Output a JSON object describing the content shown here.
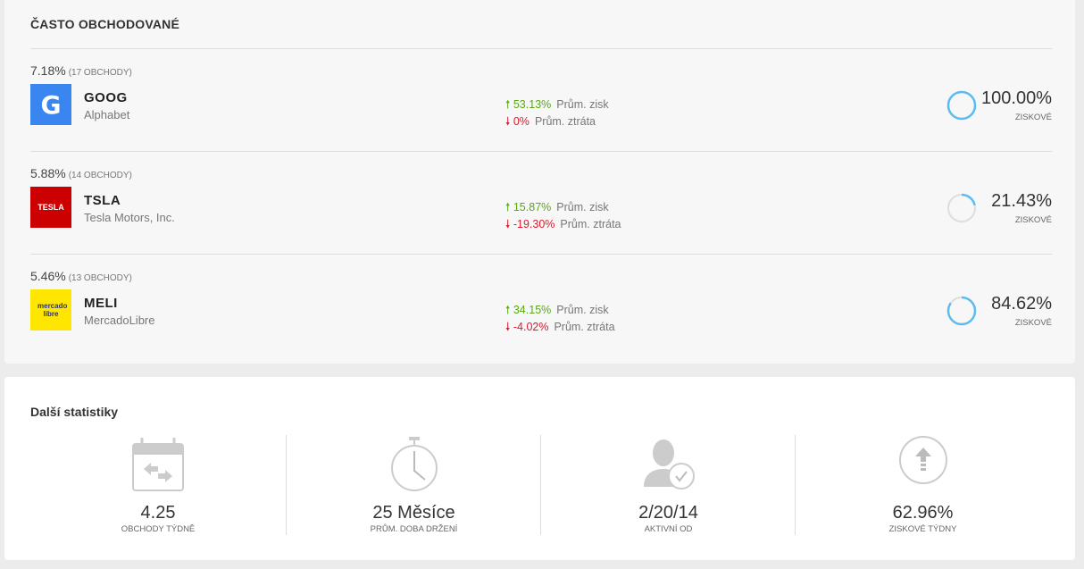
{
  "frequently_traded": {
    "title": "ČASTO OBCHODOVANÉ",
    "items": [
      {
        "percent": "7.18%",
        "trades": "(17 OBCHODY)",
        "symbol": "GOOG",
        "name": "Alphabet",
        "logo_text": "G",
        "logo_color": "#3a86f0",
        "avg_gain": "53.13%",
        "avg_gain_label": "Prům. zisk",
        "avg_loss": "0%",
        "avg_loss_label": "Prům. ztráta",
        "profitable": "100.00%",
        "profitable_fraction": 1.0,
        "profitable_label": "ZISKOVÉ"
      },
      {
        "percent": "5.88%",
        "trades": "(14 OBCHODY)",
        "symbol": "TSLA",
        "name": "Tesla Motors, Inc.",
        "logo_text": "TESLA",
        "logo_color": "#cc0000",
        "avg_gain": "15.87%",
        "avg_gain_label": "Prům. zisk",
        "avg_loss": "-19.30%",
        "avg_loss_label": "Prům. ztráta",
        "profitable": "21.43%",
        "profitable_fraction": 0.2143,
        "profitable_label": "ZISKOVÉ"
      },
      {
        "percent": "5.46%",
        "trades": "(13 OBCHODY)",
        "symbol": "MELI",
        "name": "MercadoLibre",
        "logo_text": "mercado libre",
        "logo_color": "#ffe600",
        "avg_gain": "34.15%",
        "avg_gain_label": "Prům. zisk",
        "avg_loss": "-4.02%",
        "avg_loss_label": "Prům. ztráta",
        "profitable": "84.62%",
        "profitable_fraction": 0.8462,
        "profitable_label": "ZISKOVÉ"
      }
    ]
  },
  "more_stats": {
    "title": "Další statistiky",
    "items": [
      {
        "icon": "calendar-transfer-icon",
        "value": "4.25",
        "label": "OBCHODY TÝDNĚ"
      },
      {
        "icon": "stopwatch-icon",
        "value": "25 Měsíce",
        "label": "PRŮM. DOBA DRŽENÍ"
      },
      {
        "icon": "user-check-icon",
        "value": "2/20/14",
        "label": "AKTIVNÍ OD"
      },
      {
        "icon": "arrow-up-circle-icon",
        "value": "62.96%",
        "label": "ZISKOVÉ TÝDNY"
      }
    ]
  },
  "colors": {
    "gain": "#5aa815",
    "loss": "#e0182b",
    "ring": "#5bbcf2",
    "ring_track": "#dddddd"
  }
}
